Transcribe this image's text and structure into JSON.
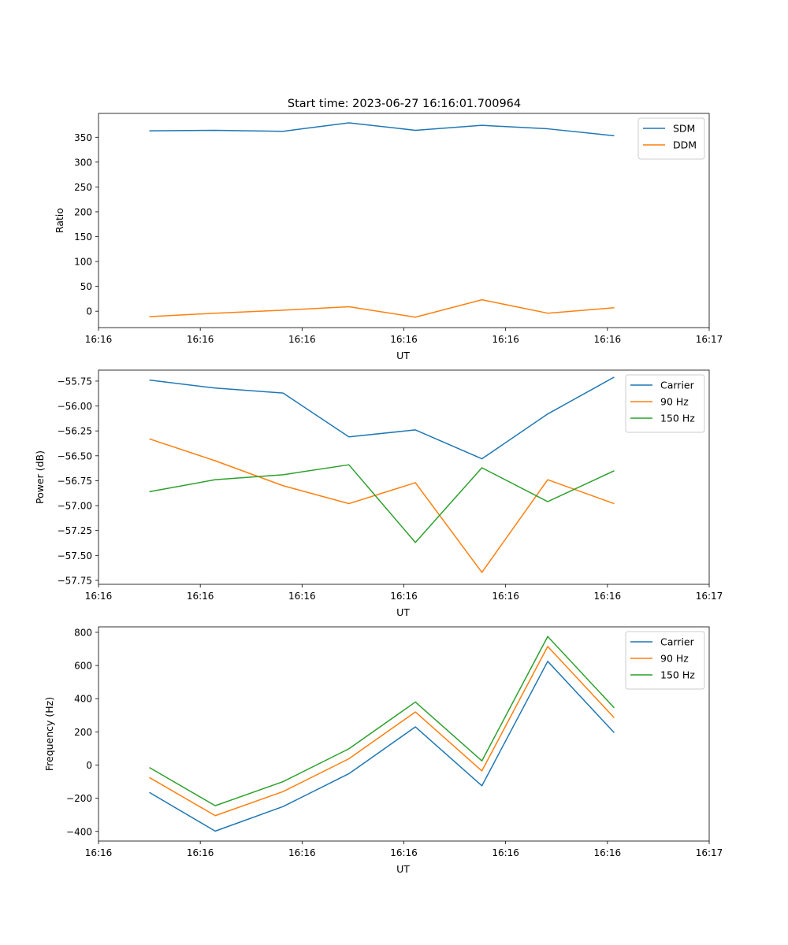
{
  "figure": {
    "title": "Start time: 2023-06-27 16:16:01.700964"
  },
  "chart_data": [
    {
      "type": "line",
      "xlabel": "UT",
      "ylabel": "Ratio",
      "xlim": [
        0,
        9
      ],
      "x_ticks": [
        "16:16",
        "16:16",
        "16:16",
        "16:16",
        "16:16",
        "16:16",
        "16:17"
      ],
      "x_tick_positions": [
        0,
        1.5,
        3,
        4.5,
        6,
        7.5,
        9
      ],
      "x": [
        0.75,
        1.72,
        2.72,
        3.69,
        4.67,
        5.65,
        6.62,
        7.6
      ],
      "ylim": [
        -33,
        398
      ],
      "y_ticks": [
        0,
        50,
        100,
        150,
        200,
        250,
        300,
        350
      ],
      "legend_position": "top-right",
      "series": [
        {
          "name": "SDM",
          "color": "#1f77b4",
          "values": [
            363,
            364,
            362,
            379,
            364,
            374,
            367,
            353
          ]
        },
        {
          "name": "DDM",
          "color": "#ff7f0e",
          "values": [
            -11,
            -4,
            2,
            9,
            -12,
            23,
            -4,
            7
          ]
        }
      ]
    },
    {
      "type": "line",
      "xlabel": "UT",
      "ylabel": "Power (dB)",
      "xlim": [
        0,
        9
      ],
      "x_ticks": [
        "16:16",
        "16:16",
        "16:16",
        "16:16",
        "16:16",
        "16:16",
        "16:17"
      ],
      "x_tick_positions": [
        0,
        1.5,
        3,
        4.5,
        6,
        7.5,
        9
      ],
      "x": [
        0.75,
        1.72,
        2.72,
        3.69,
        4.67,
        5.65,
        6.62,
        7.6
      ],
      "ylim": [
        -57.79,
        -55.64
      ],
      "y_ticks": [
        -57.75,
        -57.5,
        -57.25,
        -57.0,
        -56.75,
        -56.5,
        -56.25,
        -56.0,
        -55.75
      ],
      "y_tick_labels": [
        "−57.75",
        "−57.50",
        "−57.25",
        "−57.00",
        "−56.75",
        "−56.50",
        "−56.25",
        "−56.00",
        "−55.75"
      ],
      "legend_position": "top-right",
      "series": [
        {
          "name": "Carrier",
          "color": "#1f77b4",
          "values": [
            -55.74,
            -55.82,
            -55.87,
            -56.31,
            -56.24,
            -56.53,
            -56.08,
            -55.71
          ]
        },
        {
          "name": "90 Hz",
          "color": "#ff7f0e",
          "values": [
            -56.33,
            -56.55,
            -56.8,
            -56.98,
            -56.77,
            -57.67,
            -56.74,
            -56.98
          ]
        },
        {
          "name": "150 Hz",
          "color": "#2ca02c",
          "values": [
            -56.86,
            -56.74,
            -56.69,
            -56.59,
            -57.37,
            -56.62,
            -56.96,
            -56.65
          ]
        }
      ]
    },
    {
      "type": "line",
      "xlabel": "UT",
      "ylabel": "Frequency (Hz)",
      "xlim": [
        0,
        9
      ],
      "x_ticks": [
        "16:16",
        "16:16",
        "16:16",
        "16:16",
        "16:16",
        "16:16",
        "16:17"
      ],
      "x_tick_positions": [
        0,
        1.5,
        3,
        4.5,
        6,
        7.5,
        9
      ],
      "x": [
        0.75,
        1.72,
        2.72,
        3.69,
        4.67,
        5.65,
        6.62,
        7.6
      ],
      "ylim": [
        -458,
        833
      ],
      "y_ticks": [
        -400,
        -200,
        0,
        200,
        400,
        600,
        800
      ],
      "y_tick_labels": [
        "−400",
        "−200",
        "0",
        "200",
        "400",
        "600",
        "800"
      ],
      "legend_position": "top-right",
      "series": [
        {
          "name": "Carrier",
          "color": "#1f77b4",
          "values": [
            -165,
            -398,
            -250,
            -52,
            230,
            -125,
            625,
            195
          ]
        },
        {
          "name": "90 Hz",
          "color": "#ff7f0e",
          "values": [
            -75,
            -305,
            -160,
            38,
            320,
            -35,
            715,
            285
          ]
        },
        {
          "name": "150 Hz",
          "color": "#2ca02c",
          "values": [
            -15,
            -245,
            -100,
            98,
            380,
            25,
            775,
            345
          ]
        }
      ]
    }
  ]
}
